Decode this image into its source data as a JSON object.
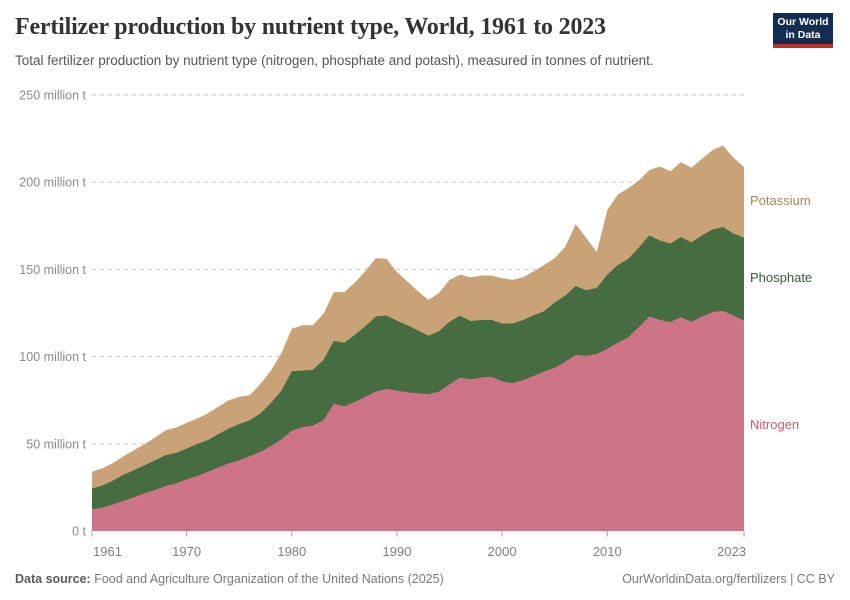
{
  "header": {
    "title": "Fertilizer production by nutrient type, World, 1961 to 2023",
    "subtitle": "Total fertilizer production by nutrient type (nitrogen, phosphate and potash), measured in tonnes of nutrient.",
    "logo": {
      "line1": "Our World",
      "line2": "in Data",
      "bg_color": "#152d52",
      "underline_color": "#bf312f"
    }
  },
  "chart_data": {
    "type": "area",
    "stacked": true,
    "title": "Fertilizer production by nutrient type, World, 1961 to 2023",
    "xlabel": "",
    "ylabel": "tonnes of nutrient",
    "ylim": [
      0,
      250
    ],
    "grid": "dashed",
    "legend_position": "right",
    "years": [
      1961,
      1962,
      1963,
      1964,
      1965,
      1966,
      1967,
      1968,
      1969,
      1970,
      1971,
      1972,
      1973,
      1974,
      1975,
      1976,
      1977,
      1978,
      1979,
      1980,
      1981,
      1982,
      1983,
      1984,
      1985,
      1986,
      1987,
      1988,
      1989,
      1990,
      1991,
      1992,
      1993,
      1994,
      1995,
      1996,
      1997,
      1998,
      1999,
      2000,
      2001,
      2002,
      2003,
      2004,
      2005,
      2006,
      2007,
      2008,
      2009,
      2010,
      2011,
      2012,
      2013,
      2014,
      2015,
      2016,
      2017,
      2018,
      2019,
      2020,
      2021,
      2022,
      2023
    ],
    "unit": "million t",
    "series": [
      {
        "name": "Nitrogen",
        "color": "#cd7487",
        "label_color": "#c25c72",
        "values": [
          12.5,
          13.5,
          15.2,
          17.3,
          19.3,
          21.6,
          23.5,
          25.8,
          27.3,
          29.6,
          31.5,
          34.0,
          36.4,
          38.7,
          40.6,
          42.9,
          45.4,
          48.7,
          52.5,
          57.5,
          59.5,
          60.5,
          63.5,
          73.0,
          71.5,
          74.0,
          77.0,
          80.0,
          81.5,
          80.5,
          79.5,
          79.0,
          78.5,
          80.0,
          84.0,
          88.0,
          86.9,
          88.0,
          88.5,
          85.8,
          84.8,
          86.5,
          89.0,
          91.5,
          93.5,
          97.0,
          101.0,
          100.5,
          101.5,
          104.5,
          108.0,
          111.0,
          117.0,
          123.0,
          121.0,
          119.8,
          122.6,
          120.0,
          123.0,
          125.4,
          126.3,
          123.5,
          120.7
        ]
      },
      {
        "name": "Phosphate",
        "color": "#466c41",
        "label_color": "#2f5f34",
        "values": [
          11.8,
          12.6,
          13.7,
          14.9,
          15.6,
          16.2,
          17.1,
          17.7,
          17.5,
          17.7,
          18.3,
          18.1,
          19.1,
          20.1,
          20.7,
          20.6,
          22.0,
          24.5,
          27.9,
          34.0,
          32.5,
          32.0,
          34.5,
          36.0,
          36.5,
          38.5,
          40.5,
          43.0,
          42.0,
          40.0,
          38.5,
          36.0,
          33.5,
          34.5,
          36.0,
          35.5,
          33.5,
          33.0,
          32.5,
          33.2,
          34.2,
          34.5,
          34.7,
          34.5,
          37.5,
          38.0,
          39.5,
          37.5,
          38.0,
          42.5,
          44.5,
          45.0,
          45.5,
          46.5,
          45.5,
          45.0,
          46.0,
          45.5,
          46.5,
          47.5,
          48.0,
          47.0,
          47.5
        ]
      },
      {
        "name": "Potassium",
        "color": "#c9a377",
        "label_color": "#a98450",
        "values": [
          9.7,
          9.9,
          10.1,
          10.7,
          11.5,
          12.0,
          13.0,
          14.3,
          14.5,
          14.7,
          14.7,
          15.3,
          15.7,
          16.2,
          15.6,
          14.3,
          16.9,
          18.6,
          21.4,
          24.5,
          26.0,
          25.5,
          26.5,
          28.0,
          29.0,
          30.0,
          31.5,
          33.5,
          32.5,
          28.0,
          25.0,
          22.5,
          20.5,
          22.0,
          24.0,
          23.5,
          25.0,
          25.5,
          25.5,
          26.0,
          25.0,
          24.5,
          25.3,
          26.5,
          25.5,
          28.0,
          35.5,
          30.0,
          20.5,
          37.0,
          40.5,
          40.5,
          38.5,
          37.5,
          42.5,
          41.5,
          43.0,
          42.9,
          44.0,
          45.5,
          46.7,
          43.5,
          40.5
        ]
      }
    ],
    "y_ticks": [
      {
        "value": 0,
        "label": "0 t"
      },
      {
        "value": 50,
        "label": "50 million t"
      },
      {
        "value": 100,
        "label": "100 million t"
      },
      {
        "value": 150,
        "label": "150 million t"
      },
      {
        "value": 200,
        "label": "200 million t"
      },
      {
        "value": 250,
        "label": "250 million t"
      }
    ],
    "x_ticks": [
      {
        "value": 1961,
        "label": "1961"
      },
      {
        "value": 1970,
        "label": "1970"
      },
      {
        "value": 1980,
        "label": "1980"
      },
      {
        "value": 1990,
        "label": "1990"
      },
      {
        "value": 2000,
        "label": "2000"
      },
      {
        "value": 2010,
        "label": "2010"
      },
      {
        "value": 2023,
        "label": "2023"
      }
    ]
  },
  "footer": {
    "source_label": "Data source:",
    "source_text": "Food and Agriculture Organization of the United Nations (2025)",
    "credit": "OurWorldinData.org/fertilizers | CC BY"
  }
}
